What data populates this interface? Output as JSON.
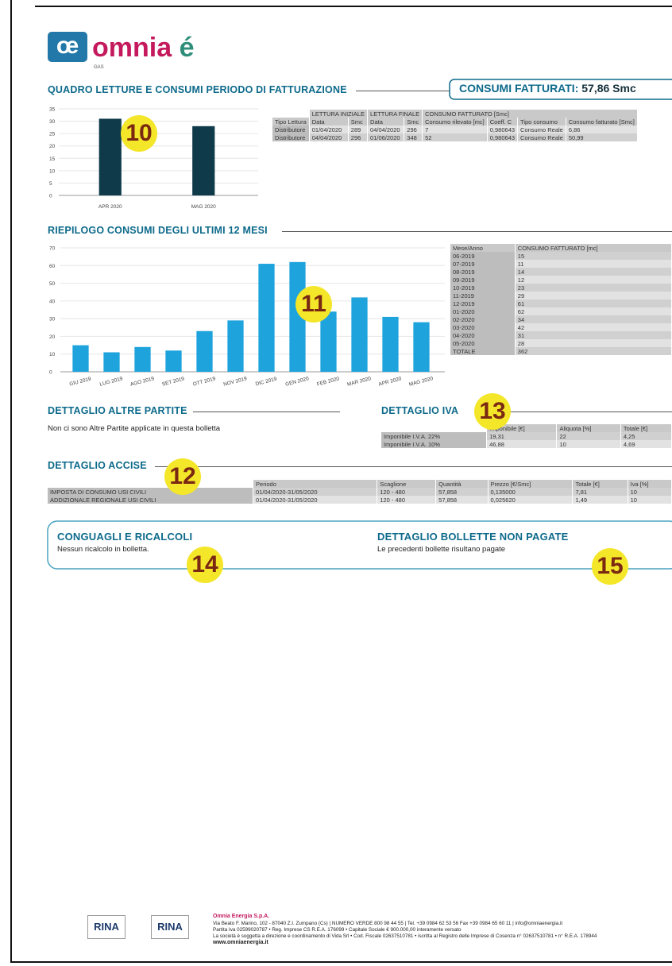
{
  "header": {
    "logo_mark": "œ",
    "brand": "omnia",
    "brand_accent": "é",
    "product": "GAS"
  },
  "quadro": {
    "title": "QUADRO LETTURE E CONSUMI PERIODO DI FATTURAZIONE",
    "badge_label": "CONSUMI FATTURATI:",
    "badge_value": "57,86 Smc",
    "table": {
      "groups": [
        "LETTURA INIZIALE",
        "LETTURA FINALE",
        "CONSUMO FATTURATO [Smc]"
      ],
      "columns": [
        "Tipo Lettura",
        "Data",
        "Smc",
        "Data",
        "Smc",
        "Consumo rilevato [mc]",
        "Coeff. C",
        "Tipo consumo",
        "Consumo fatturato [Smc]"
      ],
      "rows": [
        [
          "Distributore",
          "01/04/2020",
          "289",
          "04/04/2020",
          "296",
          "7",
          "0,980643",
          "Consumo Reale",
          "6,86"
        ],
        [
          "Distributore",
          "04/04/2020",
          "296",
          "01/06/2020",
          "348",
          "52",
          "0,980643",
          "Consumo Reale",
          "50,99"
        ]
      ]
    }
  },
  "chart_data": [
    {
      "type": "bar",
      "categories": [
        "APR 2020",
        "MAG 2020"
      ],
      "values": [
        31,
        28
      ],
      "color": "#0e3a4a",
      "ylim": [
        0,
        35
      ],
      "yticks": [
        0,
        5,
        10,
        15,
        20,
        25,
        30,
        35
      ],
      "grid": true
    },
    {
      "type": "bar",
      "categories": [
        "GIU 2019",
        "LUG 2019",
        "AGO 2019",
        "SET 2019",
        "OTT 2019",
        "NOV 2019",
        "DIC 2019",
        "GEN 2020",
        "FEB 2020",
        "MAR 2020",
        "APR 2020",
        "MAG 2020"
      ],
      "values": [
        15,
        11,
        14,
        12,
        23,
        29,
        61,
        62,
        34,
        42,
        31,
        28
      ],
      "color": "#1ea3dd",
      "ylim": [
        0,
        70
      ],
      "yticks": [
        0,
        10,
        20,
        30,
        40,
        50,
        60,
        70
      ],
      "grid": true
    }
  ],
  "riepilogo": {
    "title": "RIEPILOGO CONSUMI DEGLI ULTIMI 12 MESI",
    "table": {
      "columns": [
        "Mese/Anno",
        "CONSUMO FATTURATO [mc]"
      ],
      "rows": [
        [
          "06-2019",
          "15"
        ],
        [
          "07-2019",
          "11"
        ],
        [
          "08-2019",
          "14"
        ],
        [
          "09-2019",
          "12"
        ],
        [
          "10-2019",
          "23"
        ],
        [
          "11-2019",
          "29"
        ],
        [
          "12-2019",
          "61"
        ],
        [
          "01-2020",
          "62"
        ],
        [
          "02-2020",
          "34"
        ],
        [
          "03-2020",
          "42"
        ],
        [
          "04-2020",
          "31"
        ],
        [
          "05-2020",
          "28"
        ],
        [
          "TOTALE",
          "362"
        ]
      ]
    }
  },
  "altre_partite": {
    "title": "DETTAGLIO ALTRE PARTITE",
    "text": "Non ci sono Altre Partite applicate in questa bolletta"
  },
  "iva": {
    "title": "DETTAGLIO IVA",
    "table": {
      "columns": [
        "Imponibile [€]",
        "Aliquota [%]",
        "Totale [€]"
      ],
      "rows": [
        [
          "Imponibile I.V.A. 22%",
          "19,31",
          "22",
          "4,25"
        ],
        [
          "Imponibile I.V.A. 10%",
          "46,88",
          "10",
          "4,69"
        ]
      ]
    }
  },
  "accise": {
    "title": "DETTAGLIO ACCISE",
    "table": {
      "columns": [
        "Periodo",
        "Scaglione",
        "Quantità",
        "Prezzo [€/Smc]",
        "Totale [€]",
        "Iva [%]"
      ],
      "rows": [
        [
          "IMPOSTA DI CONSUMO USI CIVILI",
          "01/04/2020-31/05/2020",
          "120 - 480",
          "57,858",
          "0,135000",
          "7,81",
          "10"
        ],
        [
          "ADDIZIONALE REGIONALE USI CIVILI",
          "01/04/2020-31/05/2020",
          "120 - 480",
          "57,858",
          "0,025620",
          "1,49",
          "10"
        ]
      ]
    }
  },
  "conguagli": {
    "title": "CONGUAGLI E RICALCOLI",
    "text": "Nessun ricalcolo in bolletta."
  },
  "non_pagate": {
    "title": "DETTAGLIO BOLLETTE NON PAGATE",
    "text": "Le precedenti bollette risultano pagate"
  },
  "annotations": [
    "10",
    "11",
    "12",
    "13",
    "14",
    "15"
  ],
  "footer": {
    "cert": [
      "RINA",
      "RINA"
    ],
    "company": "Omnia Energia S.p.A.",
    "lines": [
      "Via Beato F. Marino, 102 - 87040 Z.I. Zumpano (Cs) | NUMERO VERDE 800 98 44 55 | Tel. +39 0984 62 53 56 Fax +39 0984 65 60 11 | info@omniaenergia.it",
      "Partita Iva 02599020787 • Reg. Imprese CS R.E.A. 176099 • Capitale Sociale € 900.000,00 interamente versato",
      "La società è soggetta a direzione e coordinamento di Vida Srl • Cod. Fiscale 02637510781 • iscritta al Registro delle Imprese di Cosenza n° 02637510781 • n° R.E.A. 178944"
    ],
    "website": "www.omniaenergia.it"
  }
}
